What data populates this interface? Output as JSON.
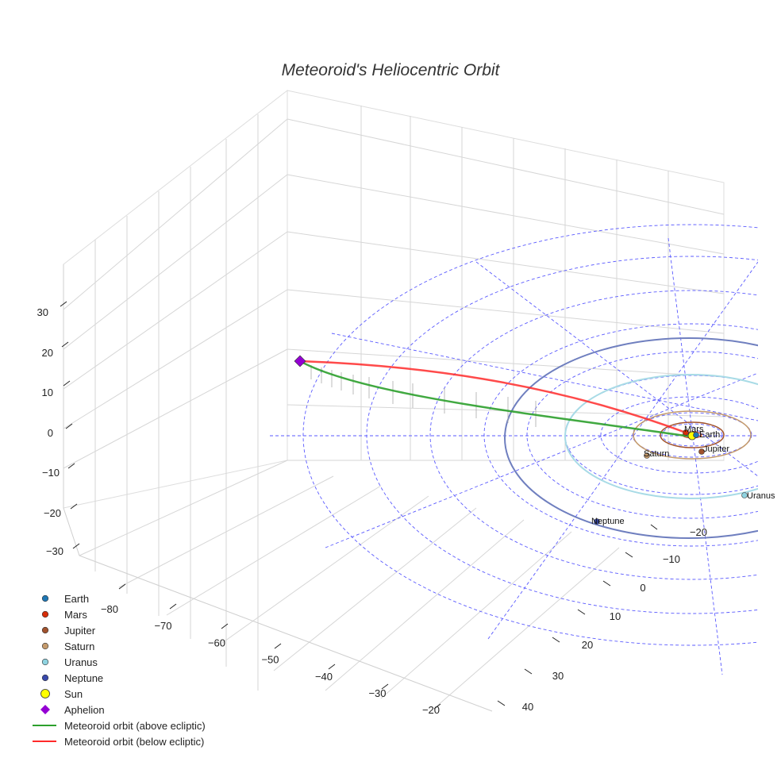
{
  "chart_data": {
    "type": "line",
    "title": "Meteoroid's Heliocentric Orbit",
    "x_axis": {
      "ticks": [
        -80,
        -70,
        -60,
        -50,
        -40,
        -30,
        -20
      ]
    },
    "y_axis": {
      "ticks": [
        -20,
        -10,
        0,
        10,
        20,
        30,
        40
      ]
    },
    "z_axis": {
      "ticks": [
        30,
        20,
        10,
        0,
        -10,
        -20,
        -30
      ]
    },
    "planets": [
      {
        "name": "Earth",
        "label": "Earth",
        "color": "#1f77b4"
      },
      {
        "name": "Mars",
        "label": "Mars",
        "color": "#d62e0a"
      },
      {
        "name": "Jupiter",
        "label": "Jupiter",
        "color": "#a0522d"
      },
      {
        "name": "Saturn",
        "label": "Saturn",
        "color": "#c49a6c"
      },
      {
        "name": "Uranus",
        "label": "Uranus",
        "color": "#8fd3e0"
      },
      {
        "name": "Neptune",
        "label": "Neptune",
        "color": "#3949ab"
      }
    ],
    "sun": {
      "label": "Sun",
      "color": "#ffff00"
    },
    "aphelion": {
      "label": "Aphelion",
      "color": "#9400d3"
    },
    "series": [
      {
        "name": "Meteoroid orbit (above ecliptic)",
        "color": "#2ca02c"
      },
      {
        "name": "Meteoroid orbit (below ecliptic)",
        "color": "#ff2a2a"
      }
    ],
    "legend": [
      {
        "label": "Earth",
        "marker": "circle",
        "color": "#1f77b4"
      },
      {
        "label": "Mars",
        "marker": "circle",
        "color": "#d62e0a"
      },
      {
        "label": "Jupiter",
        "marker": "circle",
        "color": "#a0522d"
      },
      {
        "label": "Saturn",
        "marker": "circle",
        "color": "#c49a6c"
      },
      {
        "label": "Uranus",
        "marker": "circle",
        "color": "#8fd3e0"
      },
      {
        "label": "Neptune",
        "marker": "circle",
        "color": "#3949ab"
      },
      {
        "label": "Sun",
        "marker": "big-circle",
        "color": "#ffff00"
      },
      {
        "label": "Aphelion",
        "marker": "diamond",
        "color": "#9400d3"
      },
      {
        "label": "Meteoroid orbit (above ecliptic)",
        "marker": "line",
        "color": "#2ca02c"
      },
      {
        "label": "Meteoroid orbit (below ecliptic)",
        "marker": "line",
        "color": "#ff2a2a"
      }
    ],
    "legend_position": "lower-left",
    "grid": true
  }
}
